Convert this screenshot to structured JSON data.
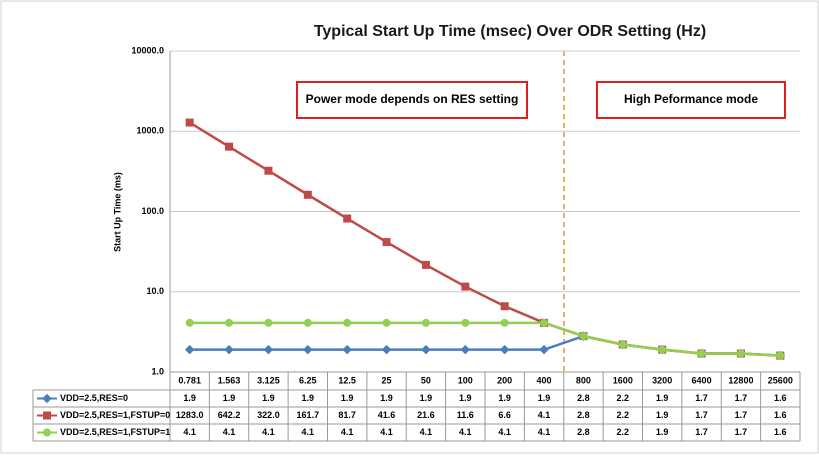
{
  "chart_data": {
    "type": "line",
    "title": "Typical Start Up Time (msec) Over ODR Setting (Hz)",
    "y_label": "Start Up Time (ms)",
    "log_y": true,
    "grid": true,
    "ylim": [
      1,
      10000
    ],
    "yticks": [
      {
        "value": 1,
        "label": "1.0"
      },
      {
        "value": 10,
        "label": "10.0"
      },
      {
        "value": 100,
        "label": "100.0"
      },
      {
        "value": 1000,
        "label": "1000.0"
      },
      {
        "value": 10000,
        "label": "10000.0"
      }
    ],
    "categories": [
      "0.781",
      "1.563",
      "3.125",
      "6.25",
      "12.5",
      "25",
      "50",
      "100",
      "200",
      "400",
      "800",
      "1600",
      "3200",
      "6400",
      "12800",
      "25600"
    ],
    "series": [
      {
        "name": "VDD=2.5,RES=0",
        "color": "#4a7ebb",
        "marker": "diamond",
        "values": [
          1.9,
          1.9,
          1.9,
          1.9,
          1.9,
          1.9,
          1.9,
          1.9,
          1.9,
          1.9,
          2.8,
          2.2,
          1.9,
          1.7,
          1.7,
          1.6
        ]
      },
      {
        "name": "VDD=2.5,RES=1,FSTUP=0",
        "color": "#be4b48",
        "marker": "square",
        "values": [
          1283,
          642.2,
          322,
          161.7,
          81.7,
          41.6,
          21.6,
          11.6,
          6.6,
          4.1,
          2.8,
          2.2,
          1.9,
          1.7,
          1.7,
          1.6
        ],
        "value_labels": [
          "1283.0",
          "642.2",
          "322.0",
          "161.7",
          "81.7",
          "41.6",
          "21.6",
          "11.6",
          "6.6",
          "4.1",
          "2.8",
          "2.2",
          "1.9",
          "1.7",
          "1.7",
          "1.6"
        ]
      },
      {
        "name": "VDD=2.5,RES=1,FSTUP=1",
        "color": "#92d050",
        "marker": "circle",
        "values": [
          4.1,
          4.1,
          4.1,
          4.1,
          4.1,
          4.1,
          4.1,
          4.1,
          4.1,
          4.1,
          2.8,
          2.2,
          1.9,
          1.7,
          1.7,
          1.6
        ]
      }
    ],
    "annotations": [
      {
        "text": "Power mode depends on RES setting"
      },
      {
        "text": "High Peformance mode"
      }
    ]
  }
}
